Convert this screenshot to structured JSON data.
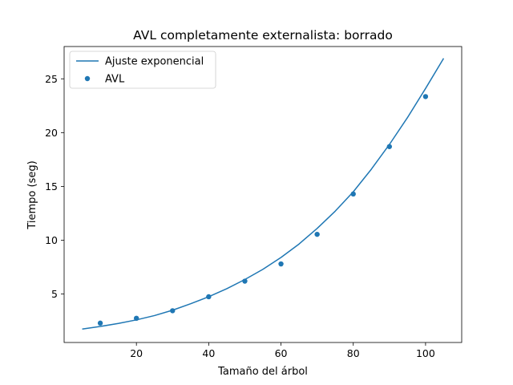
{
  "chart_data": {
    "type": "scatter",
    "title": "AVL completamente externalista: borrado",
    "xlabel": "Tamaño del árbol",
    "ylabel": "Tiempo (seg)",
    "xlim": [
      0,
      110
    ],
    "ylim": [
      0.5,
      28
    ],
    "xticks": [
      20,
      40,
      60,
      80,
      100
    ],
    "yticks": [
      5,
      10,
      15,
      20,
      25
    ],
    "grid": false,
    "legend_position": "top-left",
    "colors": {
      "series": "#1f77b4"
    },
    "series": [
      {
        "name": "Ajuste exponencial",
        "type": "line",
        "x": [
          5,
          10,
          15,
          20,
          25,
          30,
          35,
          40,
          45,
          50,
          55,
          60,
          65,
          70,
          75,
          80,
          85,
          90,
          95,
          100,
          105
        ],
        "y": [
          1.75,
          1.99,
          2.27,
          2.6,
          3.0,
          3.5,
          4.1,
          4.75,
          5.5,
          6.35,
          7.3,
          8.4,
          9.65,
          11.1,
          12.7,
          14.5,
          16.6,
          18.9,
          21.4,
          24.1,
          26.9
        ]
      },
      {
        "name": "AVL",
        "type": "scatter",
        "x": [
          10,
          20,
          30,
          40,
          50,
          60,
          70,
          80,
          90,
          100
        ],
        "y": [
          2.3,
          2.75,
          3.45,
          4.75,
          6.2,
          7.8,
          10.55,
          14.3,
          18.7,
          23.35
        ]
      }
    ]
  }
}
